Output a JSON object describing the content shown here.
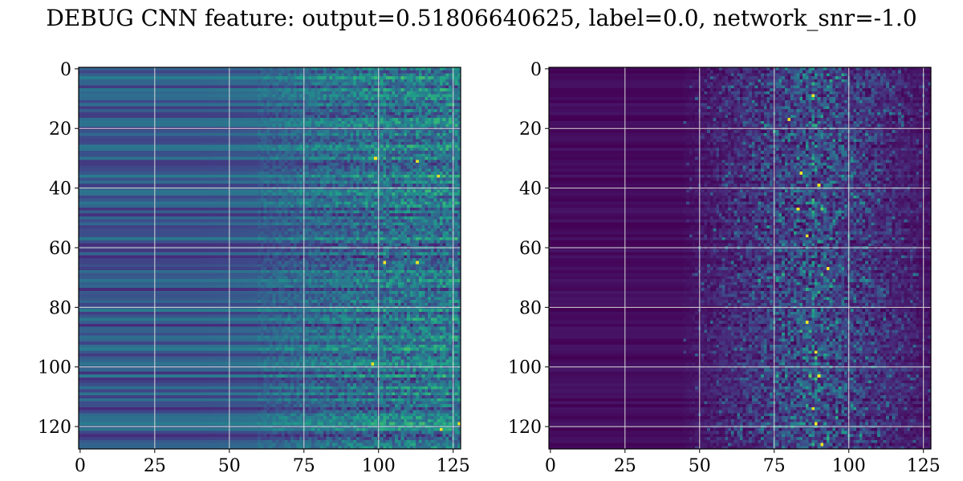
{
  "suptitle": "DEBUG CNN feature: output=0.51806640625, label=0.0, network_snr=-1.0",
  "chart_data": [
    {
      "type": "heatmap",
      "title": "",
      "xlabel": "",
      "ylabel": "",
      "rows": 128,
      "cols": 128,
      "xlim": [
        0,
        127
      ],
      "ylim": [
        127,
        0
      ],
      "xticks": [
        0,
        25,
        50,
        75,
        100,
        125
      ],
      "yticks": [
        0,
        20,
        40,
        60,
        80,
        100,
        120
      ],
      "grid": true,
      "colormap": "viridis",
      "pattern": {
        "description_values": "per-row baseline bands; low-noise left columns, increasingly noisy columns to the right",
        "base_min": 0.12,
        "base_max": 0.42,
        "noise_start_col": 60,
        "noise_amplitude": 0.35,
        "hotspots": [
          [
            65,
            102
          ],
          [
            65,
            113
          ],
          [
            30,
            99
          ],
          [
            31,
            113
          ],
          [
            36,
            120
          ],
          [
            99,
            98
          ],
          [
            119,
            127
          ],
          [
            121,
            121
          ]
        ]
      }
    },
    {
      "type": "heatmap",
      "title": "",
      "xlabel": "",
      "ylabel": "",
      "rows": 128,
      "cols": 128,
      "xlim": [
        0,
        127
      ],
      "ylim": [
        127,
        0
      ],
      "xticks": [
        0,
        25,
        50,
        75,
        100,
        125
      ],
      "yticks": [
        0,
        20,
        40,
        60,
        80,
        100,
        120
      ],
      "grid": true,
      "colormap": "viridis",
      "pattern": {
        "base_min": 0.0,
        "base_max": 0.06,
        "active_start_col": 45,
        "active_peak_col": 88,
        "noise_amplitude": 0.55,
        "hotspots": [
          [
            9,
            88
          ],
          [
            17,
            80
          ],
          [
            35,
            84
          ],
          [
            39,
            90
          ],
          [
            47,
            83
          ],
          [
            56,
            86
          ],
          [
            67,
            93
          ],
          [
            85,
            86
          ],
          [
            95,
            89
          ],
          [
            103,
            90
          ],
          [
            114,
            88
          ],
          [
            119,
            89
          ],
          [
            126,
            91
          ]
        ]
      }
    }
  ],
  "colors": {
    "viridis": [
      "#440154",
      "#482878",
      "#3e4989",
      "#31688e",
      "#26828e",
      "#1f9e89",
      "#35b779",
      "#6ece58",
      "#b5de2b",
      "#fde725"
    ],
    "grid": "#d9d9d9",
    "axis": "#000000"
  }
}
